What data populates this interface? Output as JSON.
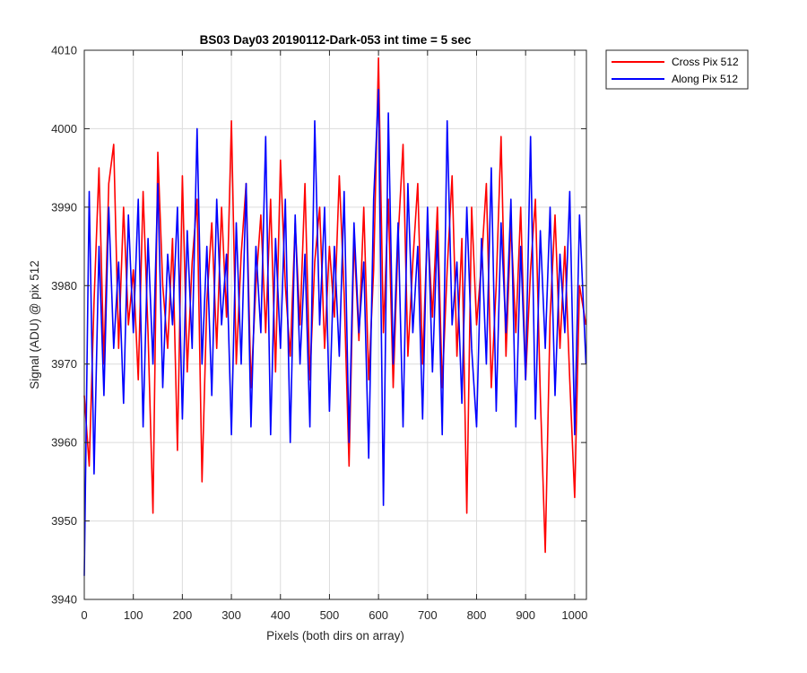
{
  "chart_data": {
    "type": "line",
    "title": "BS03 Day03 20190112-Dark-053 int time = 5 sec",
    "xlabel": "Pixels (both dirs on array)",
    "ylabel": "Signal (ADU) @ pix 512",
    "xlim": [
      0,
      1024
    ],
    "ylim": [
      3940,
      4010
    ],
    "xticks": [
      0,
      100,
      200,
      300,
      400,
      500,
      600,
      700,
      800,
      900,
      1000
    ],
    "yticks": [
      3940,
      3950,
      3960,
      3970,
      3980,
      3990,
      4000,
      4010
    ],
    "grid": true,
    "legend_position": "outside-top-right",
    "series": [
      {
        "name": "Cross Pix 512",
        "color": "#ff0000",
        "x": [
          0,
          10,
          20,
          30,
          40,
          50,
          60,
          70,
          80,
          90,
          100,
          110,
          120,
          130,
          140,
          150,
          160,
          170,
          180,
          190,
          200,
          210,
          220,
          230,
          240,
          250,
          260,
          270,
          280,
          290,
          300,
          310,
          320,
          330,
          340,
          350,
          360,
          370,
          380,
          390,
          400,
          410,
          420,
          430,
          440,
          450,
          460,
          470,
          480,
          490,
          500,
          510,
          520,
          530,
          540,
          550,
          560,
          570,
          580,
          590,
          600,
          610,
          620,
          630,
          640,
          650,
          660,
          670,
          680,
          690,
          700,
          710,
          720,
          730,
          740,
          750,
          760,
          770,
          780,
          790,
          800,
          810,
          820,
          830,
          840,
          850,
          860,
          870,
          880,
          890,
          900,
          910,
          920,
          930,
          940,
          950,
          960,
          970,
          980,
          990,
          1000,
          1010,
          1023
        ],
        "values": [
          3966,
          3957,
          3978,
          3995,
          3970,
          3993,
          3998,
          3972,
          3990,
          3975,
          3982,
          3968,
          3992,
          3974,
          3951,
          3997,
          3980,
          3972,
          3986,
          3959,
          3994,
          3969,
          3983,
          3991,
          3955,
          3978,
          3988,
          3972,
          3990,
          3976,
          4001,
          3970,
          3984,
          3993,
          3967,
          3980,
          3989,
          3974,
          3991,
          3969,
          3996,
          3980,
          3971,
          3988,
          3975,
          3993,
          3968,
          3983,
          3990,
          3972,
          3985,
          3976,
          3994,
          3979,
          3957,
          3986,
          3973,
          3990,
          3968,
          3982,
          4009,
          3974,
          3991,
          3967,
          3986,
          3998,
          3971,
          3983,
          3993,
          3970,
          3988,
          3976,
          3990,
          3967,
          3982,
          3994,
          3971,
          3986,
          3951,
          3990,
          3975,
          3983,
          3993,
          3967,
          3980,
          3999,
          3971,
          3988,
          3974,
          3990,
          3968,
          3982,
          3991,
          3966,
          3946,
          3976,
          3989,
          3972,
          3985,
          3968,
          3953,
          3980,
          3975
        ]
      },
      {
        "name": "Along Pix 512",
        "color": "#0000ff",
        "x": [
          0,
          10,
          20,
          30,
          40,
          50,
          60,
          70,
          80,
          90,
          100,
          110,
          120,
          130,
          140,
          150,
          160,
          170,
          180,
          190,
          200,
          210,
          220,
          230,
          240,
          250,
          260,
          270,
          280,
          290,
          300,
          310,
          320,
          330,
          340,
          350,
          360,
          370,
          380,
          390,
          400,
          410,
          420,
          430,
          440,
          450,
          460,
          470,
          480,
          490,
          500,
          510,
          520,
          530,
          540,
          550,
          560,
          570,
          580,
          590,
          600,
          610,
          620,
          630,
          640,
          650,
          660,
          670,
          680,
          690,
          700,
          710,
          720,
          730,
          740,
          750,
          760,
          770,
          780,
          790,
          800,
          810,
          820,
          830,
          840,
          850,
          860,
          870,
          880,
          890,
          900,
          910,
          920,
          930,
          940,
          950,
          960,
          970,
          980,
          990,
          1000,
          1010,
          1023
        ],
        "values": [
          3943,
          3992,
          3956,
          3985,
          3966,
          3990,
          3972,
          3983,
          3965,
          3989,
          3974,
          3991,
          3962,
          3986,
          3970,
          3993,
          3967,
          3984,
          3975,
          3990,
          3963,
          3987,
          3972,
          4000,
          3970,
          3985,
          3966,
          3991,
          3975,
          3984,
          3961,
          3988,
          3970,
          3993,
          3962,
          3985,
          3974,
          3999,
          3961,
          3986,
          3972,
          3991,
          3960,
          3989,
          3970,
          3984,
          3962,
          4001,
          3975,
          3990,
          3964,
          3985,
          3971,
          3992,
          3960,
          3988,
          3974,
          3983,
          3958,
          3991,
          4005,
          3952,
          4002,
          3970,
          3988,
          3962,
          3993,
          3974,
          3985,
          3963,
          3990,
          3969,
          3987,
          3961,
          4001,
          3975,
          3983,
          3965,
          3990,
          3972,
          3962,
          3986,
          3970,
          3995,
          3964,
          3988,
          3974,
          3991,
          3962,
          3985,
          3968,
          3999,
          3963,
          3987,
          3972,
          3990,
          3966,
          3984,
          3974,
          3992,
          3961,
          3989,
          3970
        ]
      }
    ]
  }
}
